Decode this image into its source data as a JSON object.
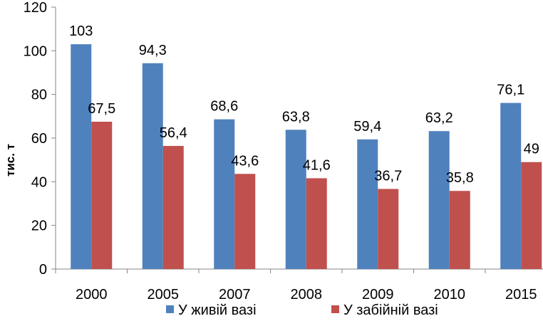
{
  "chart_data": {
    "type": "bar",
    "categories": [
      "2000",
      "2005",
      "2007",
      "2008",
      "2009",
      "2010",
      "2015"
    ],
    "series": [
      {
        "name": "У живій вазі",
        "values": [
          103,
          94.3,
          68.6,
          63.8,
          59.4,
          63.2,
          76.1
        ],
        "labels": [
          "103",
          "94,3",
          "68,6",
          "63,8",
          "59,4",
          "63,2",
          "76,1"
        ],
        "color": "#4F81BD"
      },
      {
        "name": "У забійній вазі",
        "values": [
          67.5,
          56.4,
          43.6,
          41.6,
          36.7,
          35.8,
          49
        ],
        "labels": [
          "67,5",
          "56,4",
          "43,6",
          "41,6",
          "36,7",
          "35,8",
          "49"
        ],
        "color": "#C0504D"
      }
    ],
    "ylabel": "тис. т",
    "ylim": [
      0,
      120
    ],
    "yticks": [
      "0",
      "20",
      "40",
      "60",
      "80",
      "100",
      "120"
    ],
    "legend_position": "bottom",
    "grid": false
  }
}
